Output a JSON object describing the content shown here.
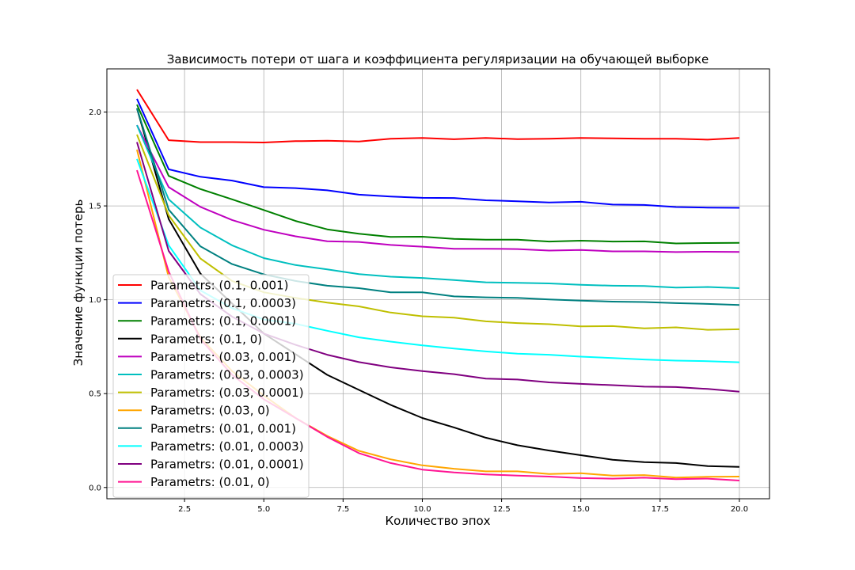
{
  "chart_data": {
    "type": "line",
    "title": "Зависимость потери от шага и коэффициента регуляризации на обучающей выборке",
    "xlabel": "Количество эпох",
    "ylabel": "Значение функции потерь",
    "xlim": [
      0.05,
      20.95
    ],
    "ylim": [
      -0.06,
      2.23
    ],
    "xticks": [
      2.5,
      5.0,
      7.5,
      10.0,
      12.5,
      15.0,
      17.5,
      20.0
    ],
    "xtick_labels": [
      "2.5",
      "5.0",
      "7.5",
      "10.0",
      "12.5",
      "15.0",
      "17.5",
      "20.0"
    ],
    "yticks": [
      0.0,
      0.5,
      1.0,
      1.5,
      2.0
    ],
    "ytick_labels": [
      "0.0",
      "0.5",
      "1.0",
      "1.5",
      "2.0"
    ],
    "grid": true,
    "legend_position": "lower-left",
    "x": [
      1,
      2,
      3,
      4,
      5,
      6,
      7,
      8,
      9,
      10,
      11,
      12,
      13,
      14,
      15,
      16,
      17,
      18,
      19,
      20
    ],
    "series": [
      {
        "name": "Parametrs: (0.1, 0.001)",
        "color": "#ff0000",
        "values": [
          2.12,
          1.85,
          1.84,
          1.84,
          1.838,
          1.845,
          1.847,
          1.843,
          1.858,
          1.862,
          1.855,
          1.862,
          1.856,
          1.858,
          1.862,
          1.86,
          1.858,
          1.858,
          1.853,
          1.862
        ]
      },
      {
        "name": "Parametrs: (0.1, 0.0003)",
        "color": "#0000ff",
        "values": [
          2.07,
          1.695,
          1.655,
          1.635,
          1.6,
          1.595,
          1.583,
          1.56,
          1.55,
          1.543,
          1.542,
          1.53,
          1.525,
          1.518,
          1.522,
          1.507,
          1.505,
          1.494,
          1.491,
          1.49
        ]
      },
      {
        "name": "Parametrs: (0.1, 0.0001)",
        "color": "#008000",
        "values": [
          2.04,
          1.66,
          1.59,
          1.535,
          1.478,
          1.42,
          1.375,
          1.352,
          1.335,
          1.336,
          1.324,
          1.32,
          1.32,
          1.31,
          1.315,
          1.31,
          1.311,
          1.3,
          1.302,
          1.303
        ]
      },
      {
        "name": "Parametrs: (0.1, 0)",
        "color": "#000000",
        "values": [
          2.02,
          1.43,
          1.14,
          0.98,
          0.82,
          0.71,
          0.6,
          0.52,
          0.44,
          0.37,
          0.32,
          0.265,
          0.225,
          0.197,
          0.172,
          0.148,
          0.135,
          0.13,
          0.114,
          0.11
        ]
      },
      {
        "name": "Parametrs: (0.03, 0.001)",
        "color": "#bf00bf",
        "values": [
          1.93,
          1.6,
          1.495,
          1.425,
          1.373,
          1.338,
          1.312,
          1.308,
          1.292,
          1.283,
          1.272,
          1.272,
          1.27,
          1.262,
          1.265,
          1.258,
          1.258,
          1.254,
          1.256,
          1.255
        ]
      },
      {
        "name": "Parametrs: (0.03, 0.0003)",
        "color": "#00bfbf",
        "values": [
          1.93,
          1.535,
          1.385,
          1.29,
          1.222,
          1.185,
          1.162,
          1.137,
          1.123,
          1.116,
          1.105,
          1.093,
          1.09,
          1.087,
          1.08,
          1.075,
          1.073,
          1.065,
          1.068,
          1.062
        ]
      },
      {
        "name": "Parametrs: (0.03, 0.0001)",
        "color": "#bfbf00",
        "values": [
          1.88,
          1.45,
          1.22,
          1.1,
          1.04,
          1.01,
          0.985,
          0.965,
          0.932,
          0.912,
          0.905,
          0.885,
          0.876,
          0.87,
          0.858,
          0.86,
          0.848,
          0.853,
          0.84,
          0.843
        ]
      },
      {
        "name": "Parametrs: (0.03, 0)",
        "color": "#ffa500",
        "values": [
          1.8,
          1.12,
          0.8,
          0.62,
          0.49,
          0.37,
          0.275,
          0.195,
          0.15,
          0.118,
          0.1,
          0.086,
          0.086,
          0.072,
          0.076,
          0.063,
          0.066,
          0.053,
          0.057,
          0.058
        ]
      },
      {
        "name": "Parametrs: (0.01, 0.001)",
        "color": "#008080",
        "values": [
          2.02,
          1.48,
          1.285,
          1.19,
          1.135,
          1.1,
          1.075,
          1.062,
          1.04,
          1.04,
          1.018,
          1.013,
          1.01,
          1.002,
          0.995,
          0.99,
          0.988,
          0.982,
          0.978,
          0.972
        ]
      },
      {
        "name": "Parametrs: (0.01, 0.0003)",
        "color": "#00ffff",
        "values": [
          1.75,
          1.29,
          1.05,
          0.955,
          0.895,
          0.872,
          0.835,
          0.8,
          0.777,
          0.757,
          0.74,
          0.725,
          0.713,
          0.707,
          0.697,
          0.69,
          0.682,
          0.676,
          0.673,
          0.667
        ]
      },
      {
        "name": "Parametrs: (0.01, 0.0001)",
        "color": "#800080",
        "values": [
          1.84,
          1.26,
          1.03,
          0.91,
          0.82,
          0.76,
          0.707,
          0.668,
          0.64,
          0.62,
          0.604,
          0.58,
          0.575,
          0.56,
          0.552,
          0.545,
          0.537,
          0.535,
          0.525,
          0.51
        ]
      },
      {
        "name": "Parametrs: (0.01, 0)",
        "color": "#ff1493",
        "values": [
          1.69,
          1.15,
          0.79,
          0.6,
          0.47,
          0.37,
          0.27,
          0.183,
          0.13,
          0.095,
          0.08,
          0.07,
          0.063,
          0.058,
          0.05,
          0.047,
          0.052,
          0.044,
          0.047,
          0.037
        ]
      }
    ]
  }
}
